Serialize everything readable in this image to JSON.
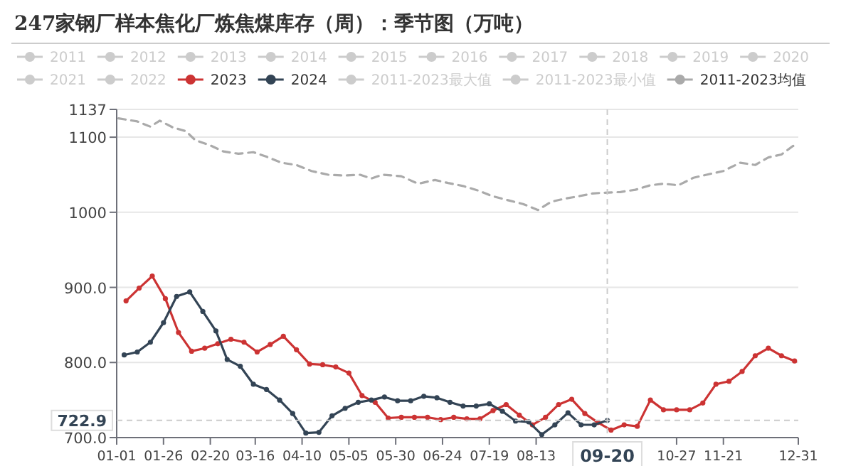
{
  "chart_data": {
    "type": "line",
    "title": "247家钢厂样本焦化厂炼焦煤库存（周）：季节图（万吨）",
    "legend": "top",
    "grid": "y",
    "xlim": [
      "--01-01",
      "--12-31"
    ],
    "xticks": [
      {
        "value": "--01-01",
        "label": "01-01"
      },
      {
        "value": "--01-26",
        "label": "01-26"
      },
      {
        "value": "--02-20",
        "label": "02-20"
      },
      {
        "value": "--03-16",
        "label": "03-16"
      },
      {
        "value": "--04-10",
        "label": "04-10"
      },
      {
        "value": "--05-05",
        "label": "05-05"
      },
      {
        "value": "--05-30",
        "label": "05-30"
      },
      {
        "value": "--06-24",
        "label": "06-24"
      },
      {
        "value": "--07-19",
        "label": "07-19"
      },
      {
        "value": "--08-13",
        "label": "08-13"
      },
      {
        "value": "--10-27",
        "label": "10-27"
      },
      {
        "value": "--11-21",
        "label": "11-21"
      },
      {
        "value": "--12-31",
        "label": "12-31"
      }
    ],
    "ylim": [
      700,
      1137
    ],
    "yticks": [
      {
        "value": 700,
        "label": "700.0"
      },
      {
        "value": 800,
        "label": "800.0"
      },
      {
        "value": 900,
        "label": "900.0"
      },
      1000,
      1100,
      1137
    ],
    "ref_lines": [
      {
        "axis": "x",
        "value": "--09-20",
        "label": "09-20"
      },
      {
        "axis": "y",
        "value": 722.9,
        "label": "722.9"
      }
    ],
    "series": [
      {
        "name": "2011",
        "color": "#cccccc"
      },
      {
        "name": "2012",
        "color": "#cccccc"
      },
      {
        "name": "2013",
        "color": "#cccccc"
      },
      {
        "name": "2014",
        "color": "#cccccc"
      },
      {
        "name": "2015",
        "color": "#cccccc"
      },
      {
        "name": "2016",
        "color": "#cccccc"
      },
      {
        "name": "2017",
        "color": "#cccccc"
      },
      {
        "name": "2018",
        "color": "#cccccc"
      },
      {
        "name": "2019",
        "color": "#cccccc"
      },
      {
        "name": "2020",
        "color": "#cccccc"
      },
      {
        "name": "2021",
        "color": "#cccccc"
      },
      {
        "name": "2022",
        "color": "#cccccc"
      },
      {
        "name": "2023",
        "color": "#cc3333",
        "marker": "circle",
        "x": [
          "--01-06",
          "--01-13",
          "--01-20",
          "--01-27",
          "--02-03",
          "--02-10",
          "--02-17",
          "--02-24",
          "--03-03",
          "--03-10",
          "--03-17",
          "--03-24",
          "--03-31",
          "--04-07",
          "--04-14",
          "--04-21",
          "--04-28",
          "--05-05",
          "--05-12",
          "--05-19",
          "--05-26",
          "--06-02",
          "--06-09",
          "--06-16",
          "--06-23",
          "--06-30",
          "--07-07",
          "--07-14",
          "--07-21",
          "--07-28",
          "--08-04",
          "--08-11",
          "--08-18",
          "--08-25",
          "--09-01",
          "--09-08",
          "--09-15",
          "--09-22",
          "--09-29",
          "--10-06",
          "--10-13",
          "--10-20",
          "--10-27",
          "--11-03",
          "--11-10",
          "--11-17",
          "--11-24",
          "--12-01",
          "--12-08",
          "--12-15",
          "--12-22",
          "--12-29"
        ],
        "values": [
          882,
          899,
          915,
          885,
          840,
          815,
          819,
          825,
          831,
          827,
          814,
          824,
          835,
          817,
          798,
          797,
          794,
          786,
          756,
          747,
          726,
          727,
          727,
          727,
          724,
          727,
          725,
          725,
          736,
          744,
          730,
          717,
          727,
          744,
          751,
          732,
          720,
          710,
          717,
          715,
          750,
          737,
          737,
          737,
          746,
          771,
          775,
          788,
          809,
          819,
          809,
          802
        ]
      },
      {
        "name": "2024",
        "color": "#334455",
        "marker": "circle",
        "x": [
          "--01-05",
          "--01-12",
          "--01-19",
          "--01-26",
          "--02-02",
          "--02-09",
          "--02-16",
          "--02-23",
          "--03-01",
          "--03-08",
          "--03-15",
          "--03-22",
          "--03-29",
          "--04-05",
          "--04-12",
          "--04-19",
          "--04-26",
          "--05-03",
          "--05-10",
          "--05-17",
          "--05-24",
          "--05-31",
          "--06-07",
          "--06-14",
          "--06-21",
          "--06-28",
          "--07-05",
          "--07-12",
          "--07-19",
          "--07-26",
          "--08-02",
          "--08-09",
          "--08-16",
          "--08-23",
          "--08-30",
          "--09-06",
          "--09-13",
          "--09-20"
        ],
        "values": [
          810,
          814,
          827,
          853,
          888,
          894,
          868,
          842,
          804,
          795,
          771,
          764,
          750,
          732,
          706,
          707,
          729,
          739,
          747,
          750,
          754,
          749,
          749,
          755,
          753,
          747,
          742,
          742,
          745,
          735,
          722,
          721,
          704,
          717,
          733,
          717,
          717,
          722.9
        ]
      },
      {
        "name": "2011-2023最大值",
        "color": "#cccccc"
      },
      {
        "name": "2011-2023最小值",
        "color": "#cccccc"
      },
      {
        "name": "2011-2023均值",
        "color": "#aaaaaa",
        "marker": "none",
        "line_style": "dashed",
        "x": [
          "--01-02",
          "--01-12",
          "--01-19",
          "--01-24",
          "--01-31",
          "--02-07",
          "--02-12",
          "--02-20",
          "--02-27",
          "--03-07",
          "--03-15",
          "--03-22",
          "--03-30",
          "--04-07",
          "--04-15",
          "--04-24",
          "--05-02",
          "--05-11",
          "--05-17",
          "--05-23",
          "--06-02",
          "--06-11",
          "--06-20",
          "--06-27",
          "--07-05",
          "--07-13",
          "--07-20",
          "--07-29",
          "--08-06",
          "--08-14",
          "--08-21",
          "--08-28",
          "--09-04",
          "--09-12",
          "--09-18",
          "--09-27",
          "--10-05",
          "--10-13",
          "--10-20",
          "--10-28",
          "--11-05",
          "--11-12",
          "--11-21",
          "--11-30",
          "--12-08",
          "--12-15",
          "--12-22",
          "--12-28",
          "--12-31"
        ],
        "values": [
          1125,
          1121,
          1114,
          1122,
          1113,
          1108,
          1096,
          1089,
          1081,
          1078,
          1080,
          1074,
          1066,
          1063,
          1055,
          1050,
          1049,
          1050,
          1045,
          1050,
          1048,
          1038,
          1043,
          1039,
          1035,
          1029,
          1022,
          1016,
          1011,
          1003,
          1014,
          1018,
          1021,
          1025,
          1026,
          1027,
          1030,
          1036,
          1038,
          1036,
          1046,
          1050,
          1055,
          1066,
          1063,
          1073,
          1077,
          1088,
          1091
        ]
      }
    ]
  }
}
